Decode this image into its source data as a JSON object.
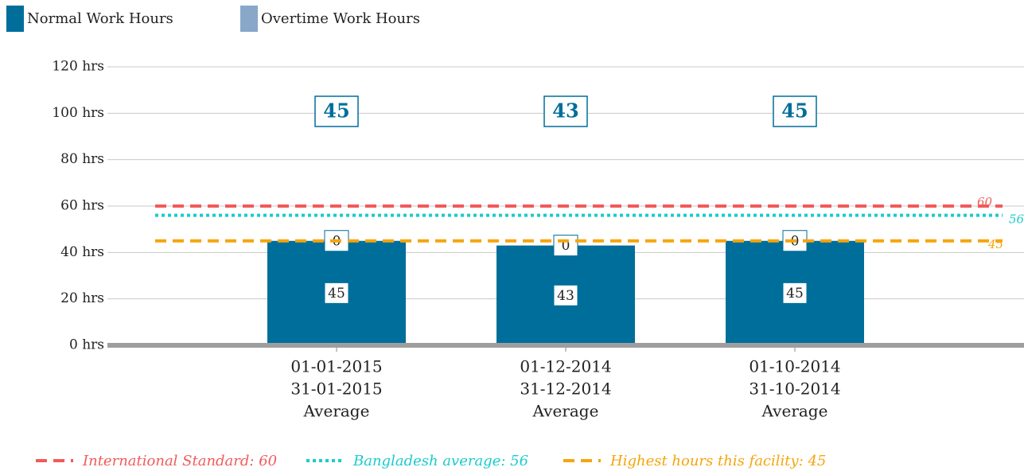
{
  "chart_data": {
    "type": "stacked-bar",
    "categories": [
      [
        "01-01-2015",
        "31-01-2015",
        "Average"
      ],
      [
        "01-12-2014",
        "31-12-2014",
        "Average"
      ],
      [
        "01-10-2014",
        "31-10-2014",
        "Average"
      ]
    ],
    "series": [
      {
        "name": "Normal Work Hours",
        "color": "#006e9a",
        "values": [
          45,
          43,
          45
        ]
      },
      {
        "name": "Overtime Work Hours",
        "color": "#88a7c9",
        "values": [
          0,
          0,
          0
        ]
      }
    ],
    "total_labels": [
      45,
      43,
      45
    ],
    "reference_lines": [
      {
        "label": "International Standard: 60",
        "value": 60,
        "color": "#f25a5a",
        "style": "dashed"
      },
      {
        "label": "Bangladesh average: 56",
        "value": 56,
        "color": "#1ccbcb",
        "style": "dotted"
      },
      {
        "label": "Highest hours this facility: 45",
        "value": 45,
        "color": "#f5a50c",
        "style": "dashed"
      }
    ],
    "ylim": [
      0,
      120
    ],
    "yticks": [
      {
        "value": 0,
        "label": "0 hrs"
      },
      {
        "value": 20,
        "label": "20 hrs"
      },
      {
        "value": 40,
        "label": "40 hrs"
      },
      {
        "value": 60,
        "label": "60 hrs"
      },
      {
        "value": 80,
        "label": "80 hrs"
      },
      {
        "value": 100,
        "label": "100 hrs"
      },
      {
        "value": 120,
        "label": "120 hrs"
      }
    ],
    "grid": true
  }
}
